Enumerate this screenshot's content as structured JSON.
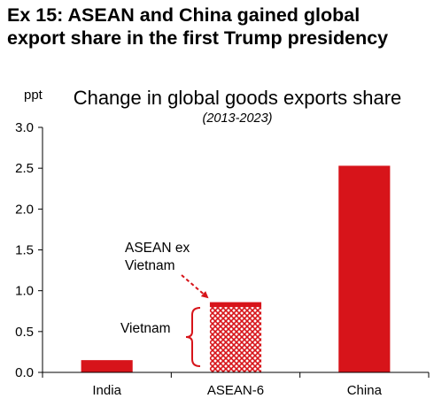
{
  "heading": {
    "line1": "Ex 15: ASEAN and China gained global",
    "line2": "export share in the first Trump presidency"
  },
  "chart_data": {
    "type": "bar",
    "title": "Change in global goods exports share",
    "subtitle": "(2013-2023)",
    "ylabel": "ppt",
    "xlabel": "",
    "ylim": [
      0,
      3.0
    ],
    "yticks": [
      "0.0",
      "0.5",
      "1.0",
      "1.5",
      "2.0",
      "2.5",
      "3.0"
    ],
    "categories": [
      "India",
      "ASEAN-6",
      "China"
    ],
    "values": [
      0.15,
      0.86,
      2.53
    ],
    "stack": {
      "category": "ASEAN-6",
      "segments": [
        {
          "name": "Vietnam",
          "value": 0.8,
          "pattern": "crosshatch"
        },
        {
          "name": "ASEAN ex Vietnam",
          "value": 0.06,
          "pattern": "solid"
        }
      ]
    },
    "annotations": {
      "vietnam": "Vietnam",
      "asean_ex_line1": "ASEAN ex",
      "asean_ex_line2": "Vietnam"
    },
    "grid": false,
    "legend": "none",
    "colors": {
      "bar": "#d7141a",
      "axis": "#000000"
    }
  }
}
